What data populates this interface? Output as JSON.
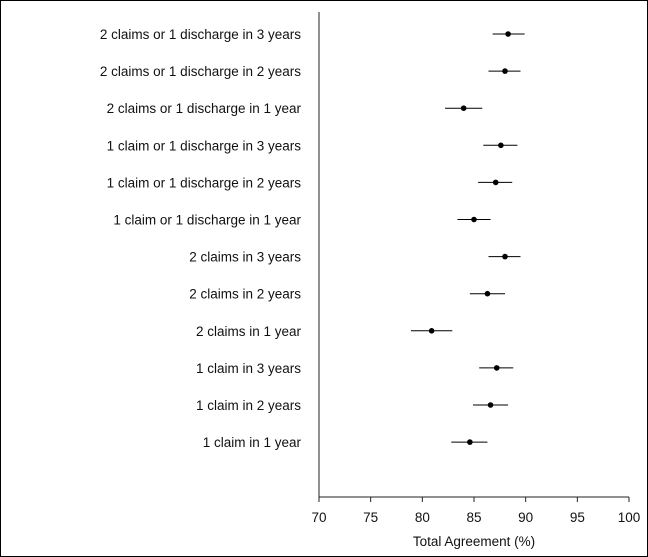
{
  "chart_data": {
    "type": "scatter",
    "subtype": "forest-plot-with-error-bars",
    "title": "",
    "xlabel": "Total Agreement (%)",
    "ylabel": "",
    "xlim": [
      70,
      100
    ],
    "xticks": [
      "70",
      "75",
      "80",
      "85",
      "90",
      "95",
      "100"
    ],
    "grid": false,
    "legend": "none",
    "marker_color": "#000000",
    "categories": [
      "2 claims or 1 discharge in 3 years",
      "2 claims or 1 discharge in 2 years",
      "2 claims or 1 discharge in 1 year",
      "1 claim or 1 discharge in 3 years",
      "1 claim or 1 discharge in 2 years",
      "1 claim or 1 discharge in 1 year",
      "2 claims in 3 years",
      "2 claims in 2 years",
      "2 claims in 1 year",
      "1 claim in 3 years",
      "1 claim in 2 years",
      "1 claim in 1 year"
    ],
    "values": [
      88.3,
      88.0,
      84.0,
      87.6,
      87.1,
      85.0,
      88.0,
      86.3,
      80.9,
      87.2,
      86.6,
      84.6
    ],
    "ci_low": [
      86.8,
      86.4,
      82.2,
      85.9,
      85.4,
      83.4,
      86.4,
      84.6,
      78.9,
      85.5,
      84.9,
      82.8
    ],
    "ci_high": [
      89.9,
      89.5,
      85.8,
      89.2,
      88.7,
      86.6,
      89.5,
      88.0,
      82.9,
      88.8,
      88.3,
      86.3
    ]
  }
}
